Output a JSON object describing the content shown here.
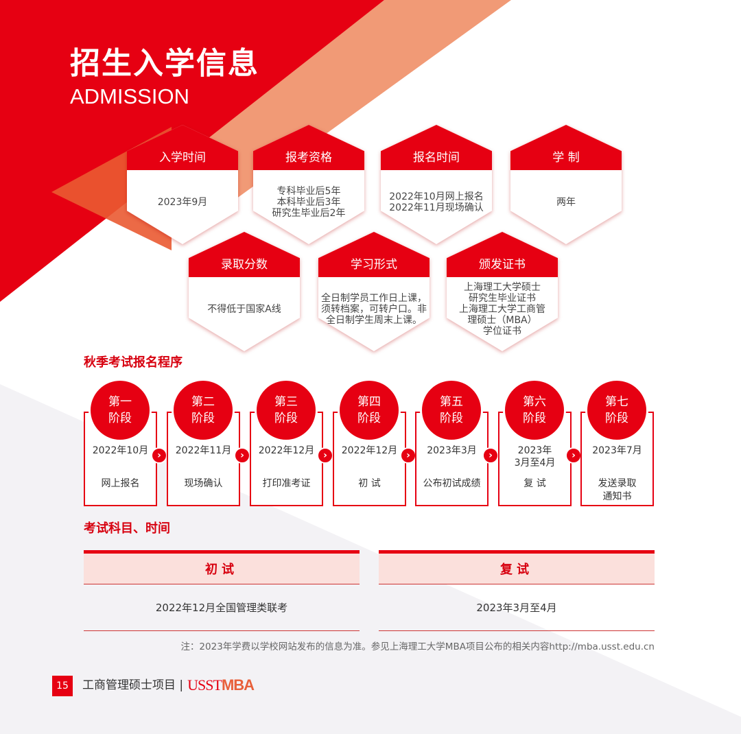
{
  "header": {
    "title": "招生入学信息",
    "subtitle": "ADMISSION"
  },
  "info_cards": [
    {
      "title": "入学时间",
      "body": "2023年9月"
    },
    {
      "title": "报考资格",
      "body": "专科毕业后5年\n本科毕业后3年\n研究生毕业后2年"
    },
    {
      "title": "报名时间",
      "body": "2022年10月网上报名\n2022年11月现场确认"
    },
    {
      "title": "学  制",
      "body": "两年"
    },
    {
      "title": "录取分数",
      "body": "不得低于国家A线"
    },
    {
      "title": "学习形式",
      "body": "全日制学员工作日上课，须转档案，可转户口。非全日制学生周末上课。"
    },
    {
      "title": "颁发证书",
      "body": "上海理工大学硕士\n研究生毕业证书\n上海理工大学工商管\n理硕士（MBA）\n学位证书"
    }
  ],
  "procedure": {
    "title": "秋季考试报名程序",
    "steps": [
      {
        "stage": "第一\n阶段",
        "date": "2022年10月",
        "desc": "网上报名"
      },
      {
        "stage": "第二\n阶段",
        "date": "2022年11月",
        "desc": "现场确认"
      },
      {
        "stage": "第三\n阶段",
        "date": "2022年12月",
        "desc": "打印准考证"
      },
      {
        "stage": "第四\n阶段",
        "date": "2022年12月",
        "desc": "初 试"
      },
      {
        "stage": "第五\n阶段",
        "date": "2023年3月",
        "desc": "公布初试成绩"
      },
      {
        "stage": "第六\n阶段",
        "date": "2023年\n3月至4月",
        "desc": "复 试"
      },
      {
        "stage": "第七\n阶段",
        "date": "2023年7月",
        "desc": "发送录取\n通知书"
      }
    ]
  },
  "exams": {
    "title": "考试科目、时间",
    "columns": [
      {
        "header": "初试",
        "value": "2022年12月全国管理类联考"
      },
      {
        "header": "复试",
        "value": "2023年3月至4月"
      }
    ]
  },
  "note": "注：2023年学费以学校网站发布的信息为准。参见上海理工大学MBA项目公布的相关内容http://mba.usst.edu.cn",
  "footer": {
    "page": "15",
    "program": "工商管理硕士项目 |",
    "logo_text": "USST",
    "logo_bold": "MBA"
  },
  "colors": {
    "red": "#e60012",
    "salmon": "#f19a76",
    "orange": "#ea5a32",
    "gray": "#f3f2f5"
  }
}
